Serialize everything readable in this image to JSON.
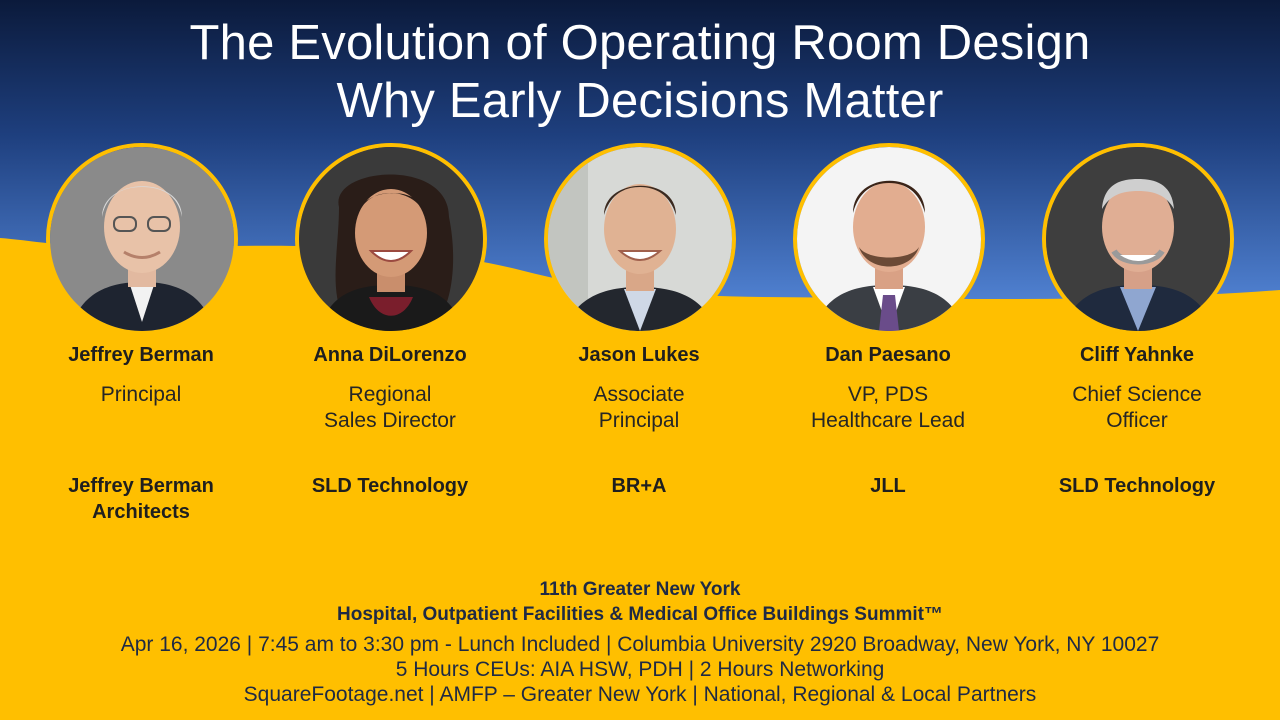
{
  "title": {
    "line1": "The Evolution of Operating Room Design",
    "line2": "Why Early Decisions Matter"
  },
  "colors": {
    "accent": "#ffbf00",
    "navy": "#0e1f44",
    "blue": "#4a78c4"
  },
  "speakers": [
    {
      "name": "Jeffrey Berman",
      "role_line1": "Principal",
      "role_line2": "",
      "company_line1": "Jeffrey Berman",
      "company_line2": "Architects"
    },
    {
      "name": "Anna DiLorenzo",
      "role_line1": "Regional",
      "role_line2": "Sales Director",
      "company_line1": "SLD Technology",
      "company_line2": ""
    },
    {
      "name": "Jason Lukes",
      "role_line1": "Associate",
      "role_line2": "Principal",
      "company_line1": "BR+A",
      "company_line2": ""
    },
    {
      "name": "Dan Paesano",
      "role_line1": "VP, PDS",
      "role_line2": "Healthcare Lead",
      "company_line1": "JLL",
      "company_line2": ""
    },
    {
      "name": "Cliff Yahnke",
      "role_line1": "Chief Science",
      "role_line2": "Officer",
      "company_line1": "SLD Technology",
      "company_line2": ""
    }
  ],
  "footer": {
    "line1": "11th Greater New York",
    "line2": "Hospital, Outpatient Facilities & Medical Office Buildings Summit™",
    "line3": "Apr 16, 2026 | 7:45 am to 3:30 pm - Lunch Included | Columbia University 2920 Broadway, New York, NY 10027",
    "line4": "5 Hours CEUs: AIA HSW, PDH | 2 Hours Networking",
    "line5": "SquareFootage.net | AMFP – Greater New York | National, Regional & Local Partners"
  }
}
